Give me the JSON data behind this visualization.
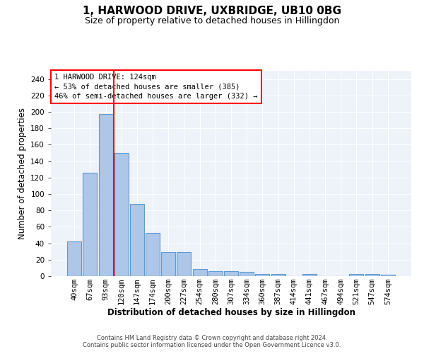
{
  "title": "1, HARWOOD DRIVE, UXBRIDGE, UB10 0BG",
  "subtitle": "Size of property relative to detached houses in Hillingdon",
  "xlabel": "Distribution of detached houses by size in Hillingdon",
  "ylabel": "Number of detached properties",
  "footnote1": "Contains HM Land Registry data © Crown copyright and database right 2024.",
  "footnote2": "Contains public sector information licensed under the Open Government Licence v3.0.",
  "bar_labels": [
    "40sqm",
    "67sqm",
    "93sqm",
    "120sqm",
    "147sqm",
    "174sqm",
    "200sqm",
    "227sqm",
    "254sqm",
    "280sqm",
    "307sqm",
    "334sqm",
    "360sqm",
    "387sqm",
    "414sqm",
    "441sqm",
    "467sqm",
    "494sqm",
    "521sqm",
    "547sqm",
    "574sqm"
  ],
  "bar_values": [
    42,
    126,
    197,
    150,
    88,
    53,
    29,
    29,
    9,
    6,
    6,
    5,
    3,
    3,
    0,
    3,
    0,
    0,
    3,
    3,
    2
  ],
  "bar_color": "#aec6e8",
  "bar_edge_color": "#5b9bd5",
  "vline_color": "red",
  "annotation_text_line1": "1 HARWOOD DRIVE: 124sqm",
  "annotation_text_line2": "← 53% of detached houses are smaller (385)",
  "annotation_text_line3": "46% of semi-detached houses are larger (332) →",
  "ylim": [
    0,
    250
  ],
  "yticks": [
    0,
    20,
    40,
    60,
    80,
    100,
    120,
    140,
    160,
    180,
    200,
    220,
    240
  ],
  "background_color": "#eef2f9",
  "title_fontsize": 11,
  "subtitle_fontsize": 9,
  "xlabel_fontsize": 8.5,
  "ylabel_fontsize": 8.5,
  "tick_fontsize": 7.5,
  "annotation_fontsize": 7.5,
  "footnote_fontsize": 6
}
